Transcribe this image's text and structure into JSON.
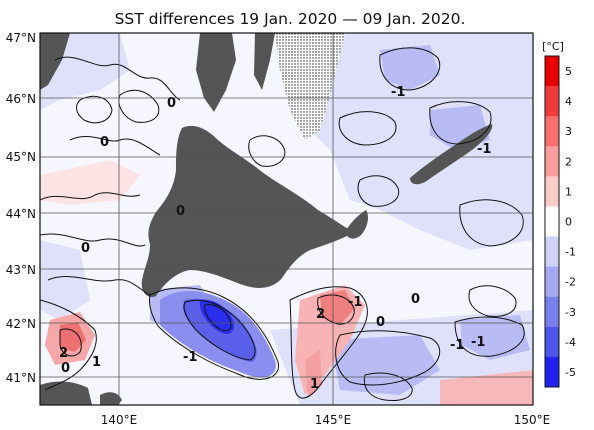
{
  "title": "SST differences 19 Jan. 2020 — 09 Jan. 2020.",
  "lat_labels": [
    "47°N",
    "46°N",
    "45°N",
    "44°N",
    "43°N",
    "42°N",
    "41°N"
  ],
  "lon_labels": [
    "140°E",
    "145°E",
    "150°E"
  ],
  "colorbar": {
    "unit": "[°C]",
    "ticks": [
      "5",
      "4",
      "3",
      "2",
      "1",
      "0",
      "-1",
      "-2",
      "-3",
      "-4",
      "-5"
    ],
    "colors": [
      "#e80000",
      "#f23c3c",
      "#f66e6e",
      "#fa9e9e",
      "#fdcaca",
      "#ffffff",
      "#cfd2f8",
      "#a6aaf2",
      "#7b80ec",
      "#5056ea",
      "#2222ee"
    ]
  },
  "contour_labels": [
    "0",
    "0",
    "0",
    "0",
    "0",
    "-1",
    "-1",
    "-1",
    "-1",
    "-1",
    "2",
    "-1",
    "0",
    "2",
    "1",
    "0",
    "1"
  ],
  "colors": {
    "land": "#555555",
    "sea_neutral": "#f8f8ff",
    "warm": "#f08080",
    "cool": "#6f74e6",
    "grid": "#555555"
  }
}
